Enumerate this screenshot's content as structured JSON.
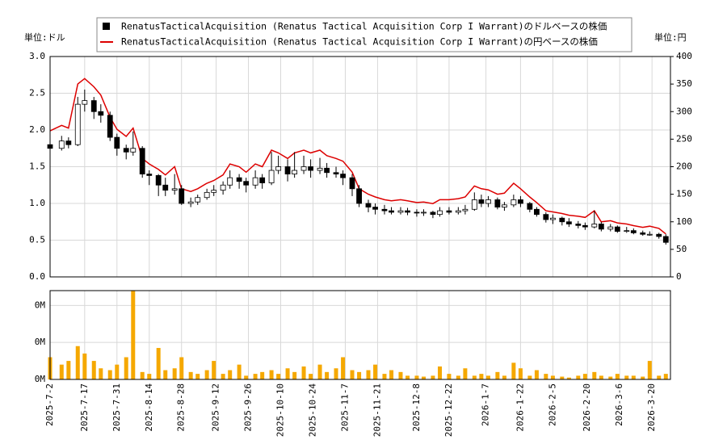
{
  "chart_data": {
    "type": "candlestick",
    "ylabel": "単位:ドル",
    "y2label": "単位:円",
    "x": [
      "2025-7-2",
      "2025-7-7",
      "2025-7-10",
      "2025-7-14",
      "2025-7-17",
      "2025-7-21",
      "2025-7-24",
      "2025-7-28",
      "2025-7-31",
      "2025-8-4",
      "2025-8-7",
      "2025-8-11",
      "2025-8-14",
      "2025-8-18",
      "2025-8-21",
      "2025-8-25",
      "2025-8-28",
      "2025-9-1",
      "2025-9-4",
      "2025-9-8",
      "2025-9-11",
      "2025-9-15",
      "2025-9-18",
      "2025-9-22",
      "2025-9-25",
      "2025-9-29",
      "2025-10-2",
      "2025-10-6",
      "2025-10-9",
      "2025-10-13",
      "2025-10-16",
      "2025-10-20",
      "2025-10-23",
      "2025-10-27",
      "2025-10-30",
      "2025-11-3",
      "2025-11-6",
      "2025-11-10",
      "2025-11-13",
      "2025-11-17",
      "2025-11-20",
      "2025-11-24",
      "2025-11-27",
      "2025-12-1",
      "2025-12-4",
      "2025-12-8",
      "2025-12-11",
      "2025-12-15",
      "2025-12-18",
      "2025-12-22",
      "2025-12-26",
      "2025-12-29",
      "2026-1-2",
      "2026-1-5",
      "2026-1-8",
      "2026-1-12",
      "2026-1-15",
      "2026-1-19",
      "2026-1-22",
      "2026-1-26",
      "2026-1-29",
      "2026-2-2",
      "2026-2-5",
      "2026-2-9",
      "2026-2-12",
      "2026-2-16",
      "2026-2-19",
      "2026-2-23",
      "2026-2-26",
      "2026-3-2",
      "2026-3-5",
      "2026-3-9",
      "2026-3-12",
      "2026-3-16",
      "2026-3-19",
      "2026-3-23",
      "2026-3-26"
    ],
    "series": [
      {
        "name": "RenatusTacticalAcquisition (Renatus Tactical Acquisition Corp I Warrant)のドルベースの株価",
        "color": "#000000",
        "open": [
          1.8,
          1.75,
          1.85,
          1.8,
          2.35,
          2.4,
          2.25,
          2.2,
          1.9,
          1.75,
          1.7,
          1.75,
          1.4,
          1.38,
          1.25,
          1.18,
          1.2,
          1.0,
          1.02,
          1.08,
          1.15,
          1.18,
          1.25,
          1.35,
          1.3,
          1.25,
          1.35,
          1.28,
          1.45,
          1.5,
          1.4,
          1.45,
          1.5,
          1.45,
          1.48,
          1.42,
          1.4,
          1.35,
          1.2,
          1.0,
          0.95,
          0.92,
          0.9,
          0.88,
          0.9,
          0.88,
          0.87,
          0.88,
          0.85,
          0.9,
          0.88,
          0.9,
          0.92,
          1.05,
          1.0,
          1.05,
          0.95,
          0.98,
          1.05,
          1.0,
          0.92,
          0.85,
          0.78,
          0.8,
          0.75,
          0.72,
          0.7,
          0.68,
          0.72,
          0.65,
          0.68,
          0.62,
          0.63,
          0.6,
          0.58,
          0.58,
          0.55
        ],
        "high": [
          1.9,
          1.92,
          1.9,
          2.45,
          2.55,
          2.45,
          2.35,
          2.25,
          1.95,
          1.8,
          1.98,
          1.78,
          1.45,
          1.4,
          1.35,
          1.4,
          1.25,
          1.08,
          1.12,
          1.2,
          1.25,
          1.3,
          1.45,
          1.4,
          1.35,
          1.45,
          1.4,
          1.7,
          1.65,
          1.6,
          1.7,
          1.65,
          1.6,
          1.62,
          1.55,
          1.5,
          1.45,
          1.4,
          1.25,
          1.05,
          1.0,
          0.98,
          0.95,
          0.95,
          0.94,
          0.92,
          0.92,
          0.9,
          0.95,
          0.95,
          0.95,
          0.98,
          1.15,
          1.12,
          1.1,
          1.08,
          1.02,
          1.12,
          1.1,
          1.02,
          0.95,
          0.88,
          0.85,
          0.82,
          0.8,
          0.76,
          0.74,
          0.9,
          0.75,
          0.72,
          0.7,
          0.68,
          0.66,
          0.63,
          0.62,
          0.6,
          0.58
        ],
        "low": [
          1.7,
          1.72,
          1.75,
          1.78,
          2.25,
          2.15,
          2.1,
          1.85,
          1.65,
          1.6,
          1.65,
          1.35,
          1.25,
          1.1,
          1.1,
          1.12,
          0.98,
          0.95,
          0.98,
          1.05,
          1.1,
          1.12,
          1.2,
          1.2,
          1.15,
          1.2,
          1.2,
          1.25,
          1.4,
          1.3,
          1.35,
          1.4,
          1.35,
          1.4,
          1.35,
          1.35,
          1.25,
          1.1,
          0.95,
          0.88,
          0.85,
          0.85,
          0.85,
          0.85,
          0.84,
          0.82,
          0.83,
          0.8,
          0.82,
          0.85,
          0.85,
          0.85,
          0.9,
          0.95,
          0.95,
          0.92,
          0.9,
          0.95,
          0.95,
          0.88,
          0.82,
          0.74,
          0.72,
          0.7,
          0.68,
          0.66,
          0.64,
          0.66,
          0.62,
          0.62,
          0.6,
          0.6,
          0.58,
          0.56,
          0.56,
          0.52,
          0.44
        ],
        "close": [
          1.75,
          1.85,
          1.8,
          2.35,
          2.4,
          2.25,
          2.2,
          1.9,
          1.75,
          1.7,
          1.75,
          1.4,
          1.38,
          1.25,
          1.18,
          1.2,
          1.0,
          1.02,
          1.08,
          1.15,
          1.18,
          1.25,
          1.35,
          1.3,
          1.25,
          1.35,
          1.28,
          1.45,
          1.5,
          1.4,
          1.45,
          1.5,
          1.45,
          1.48,
          1.42,
          1.4,
          1.35,
          1.2,
          1.0,
          0.95,
          0.92,
          0.9,
          0.88,
          0.9,
          0.88,
          0.87,
          0.88,
          0.85,
          0.9,
          0.88,
          0.9,
          0.92,
          1.05,
          1.0,
          1.05,
          0.95,
          0.98,
          1.05,
          1.0,
          0.92,
          0.85,
          0.78,
          0.8,
          0.75,
          0.72,
          0.7,
          0.68,
          0.72,
          0.65,
          0.68,
          0.62,
          0.63,
          0.6,
          0.58,
          0.58,
          0.55,
          0.47
        ]
      },
      {
        "name": "RenatusTacticalAcquisition (Renatus Tactical Acquisition Corp I Warrant)の円ベースの株価",
        "color": "#dd0000",
        "axis": "y2",
        "values": [
          265,
          275,
          270,
          350,
          360,
          345,
          330,
          290,
          268,
          255,
          270,
          215,
          205,
          195,
          185,
          200,
          160,
          155,
          160,
          170,
          175,
          185,
          205,
          200,
          190,
          205,
          200,
          230,
          225,
          215,
          225,
          230,
          225,
          230,
          220,
          215,
          210,
          190,
          160,
          150,
          145,
          140,
          138,
          140,
          138,
          135,
          136,
          133,
          140,
          140,
          142,
          145,
          165,
          160,
          158,
          150,
          152,
          170,
          160,
          145,
          135,
          120,
          118,
          115,
          112,
          110,
          108,
          120,
          100,
          102,
          98,
          96,
          93,
          90,
          92,
          88,
          78
        ]
      }
    ],
    "volume": {
      "color": "#f5a800",
      "values": [
        12000,
        8000,
        10000,
        18000,
        14000,
        10000,
        6000,
        5000,
        8000,
        12000,
        48000,
        4000,
        3000,
        17000,
        5000,
        6000,
        12000,
        4000,
        3000,
        5000,
        10000,
        3000,
        5000,
        8000,
        2000,
        3000,
        4000,
        5000,
        3000,
        6000,
        4000,
        7000,
        3000,
        8000,
        4000,
        6000,
        12000,
        5000,
        4000,
        5000,
        8000,
        3000,
        5000,
        4000,
        2000,
        2000,
        1500,
        2000,
        7000,
        3000,
        2000,
        6000,
        2000,
        3000,
        2000,
        4000,
        2000,
        9000,
        6000,
        2000,
        5000,
        3000,
        2000,
        1500,
        1000,
        2000,
        3000,
        4000,
        2000,
        1500,
        3000,
        2000,
        2000,
        1500,
        10000,
        2000,
        3000
      ],
      "ylim": [
        0,
        48000
      ],
      "yticks": [
        {
          "value": 0,
          "label": "0M"
        },
        {
          "value": 20000,
          "label": "0M"
        },
        {
          "value": 40000,
          "label": "0M"
        }
      ]
    },
    "xlim": [
      "2025-7-2",
      "2026-3-28"
    ],
    "xticks": [
      "2025-7-2",
      "2025-7-17",
      "2025-7-31",
      "2025-8-14",
      "2025-8-28",
      "2025-9-12",
      "2025-9-26",
      "2025-10-10",
      "2025-10-24",
      "2025-11-7",
      "2025-11-21",
      "2025-12-8",
      "2025-12-22",
      "2026-1-7",
      "2026-1-22",
      "2026-2-5",
      "2026-2-20",
      "2026-3-6",
      "2026-3-20"
    ],
    "ylim": [
      0,
      3
    ],
    "yticks": [
      {
        "value": 0,
        "label": "0.0"
      },
      0.5,
      {
        "value": 1,
        "label": "1.0"
      },
      1.5,
      {
        "value": 2,
        "label": "2.0"
      },
      2.5,
      {
        "value": 3,
        "label": "3.0"
      }
    ],
    "y2lim": [
      0,
      400
    ],
    "y2ticks": [
      0,
      50,
      100,
      150,
      200,
      250,
      300,
      350,
      400
    ],
    "grid": true
  }
}
